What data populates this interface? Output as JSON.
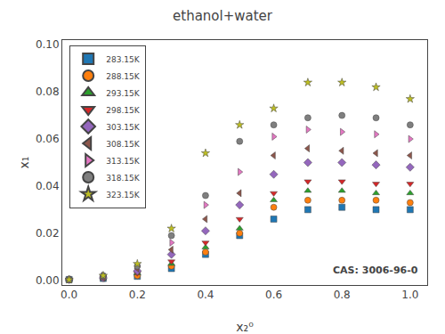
{
  "chart_data": {
    "type": "scatter",
    "title": "ethanol+water",
    "x_label": "x₂⁰",
    "y_label": "x₁",
    "annotations": [
      "CAS: 3006-96-0"
    ],
    "xlim": [
      -0.02,
      1.05
    ],
    "ylim": [
      -0.002,
      0.102
    ],
    "xticks": [
      {
        "value": 0.0,
        "label": "0.0"
      },
      0.2,
      0.4,
      0.6,
      0.8,
      {
        "value": 1.0,
        "label": "1.0"
      }
    ],
    "yticks": [
      {
        "value": 0.0,
        "label": "0.00"
      },
      0.02,
      0.04,
      0.06,
      0.08,
      {
        "value": 0.1,
        "label": "0.10"
      }
    ],
    "grid": false,
    "legend": "upper left",
    "series": [
      {
        "name": "283.15K",
        "marker": "square",
        "x": [
          0.0,
          0.1,
          0.2,
          0.3,
          0.4,
          0.5,
          0.6,
          0.7,
          0.8,
          0.9,
          1.0
        ],
        "values": [
          0.0003,
          0.0008,
          0.0017,
          0.005,
          0.011,
          0.019,
          0.026,
          0.03,
          0.031,
          0.03,
          0.03
        ]
      },
      {
        "name": "288.15K",
        "marker": "circle",
        "x": [
          0.0,
          0.1,
          0.2,
          0.3,
          0.4,
          0.5,
          0.6,
          0.7,
          0.8,
          0.9,
          1.0
        ],
        "values": [
          0.0003,
          0.001,
          0.002,
          0.006,
          0.012,
          0.02,
          0.031,
          0.034,
          0.034,
          0.034,
          0.033
        ]
      },
      {
        "name": "293.15K",
        "marker": "triangle-up",
        "x": [
          0.0,
          0.1,
          0.2,
          0.3,
          0.4,
          0.5,
          0.6,
          0.7,
          0.8,
          0.9,
          1.0
        ],
        "values": [
          0.0003,
          0.001,
          0.003,
          0.007,
          0.014,
          0.022,
          0.034,
          0.038,
          0.038,
          0.037,
          0.037
        ]
      },
      {
        "name": "298.15K",
        "marker": "triangle-down",
        "x": [
          0.0,
          0.1,
          0.2,
          0.3,
          0.4,
          0.5,
          0.6,
          0.7,
          0.8,
          0.9,
          1.0
        ],
        "values": [
          0.0003,
          0.001,
          0.003,
          0.008,
          0.016,
          0.026,
          0.037,
          0.042,
          0.042,
          0.041,
          0.041
        ]
      },
      {
        "name": "303.15K",
        "marker": "diamond",
        "x": [
          0.0,
          0.1,
          0.2,
          0.3,
          0.4,
          0.5,
          0.6,
          0.7,
          0.8,
          0.9,
          1.0
        ],
        "values": [
          0.0003,
          0.001,
          0.004,
          0.011,
          0.021,
          0.032,
          0.045,
          0.05,
          0.05,
          0.049,
          0.048
        ]
      },
      {
        "name": "308.15K",
        "marker": "triangle-left",
        "x": [
          0.0,
          0.1,
          0.2,
          0.3,
          0.4,
          0.5,
          0.6,
          0.7,
          0.8,
          0.9,
          1.0
        ],
        "values": [
          0.0003,
          0.001,
          0.005,
          0.013,
          0.026,
          0.037,
          0.053,
          0.056,
          0.055,
          0.054,
          0.053
        ]
      },
      {
        "name": "313.15K",
        "marker": "triangle-right",
        "x": [
          0.0,
          0.1,
          0.2,
          0.3,
          0.4,
          0.5,
          0.6,
          0.7,
          0.8,
          0.9,
          1.0
        ],
        "values": [
          0.0003,
          0.002,
          0.006,
          0.016,
          0.032,
          0.046,
          0.061,
          0.064,
          0.063,
          0.062,
          0.06
        ]
      },
      {
        "name": "318.15K",
        "marker": "circle",
        "x": [
          0.0,
          0.1,
          0.2,
          0.3,
          0.4,
          0.5,
          0.6,
          0.7,
          0.8,
          0.9,
          1.0
        ],
        "values": [
          0.0003,
          0.002,
          0.006,
          0.019,
          0.036,
          0.059,
          0.066,
          0.069,
          0.07,
          0.069,
          0.066
        ]
      },
      {
        "name": "323.15K",
        "marker": "star",
        "x": [
          0.0,
          0.1,
          0.2,
          0.3,
          0.4,
          0.5,
          0.6,
          0.7,
          0.8,
          0.9,
          1.0
        ],
        "values": [
          0.0003,
          0.002,
          0.007,
          0.022,
          0.054,
          0.066,
          0.073,
          0.084,
          0.084,
          0.082,
          0.077
        ]
      }
    ]
  }
}
